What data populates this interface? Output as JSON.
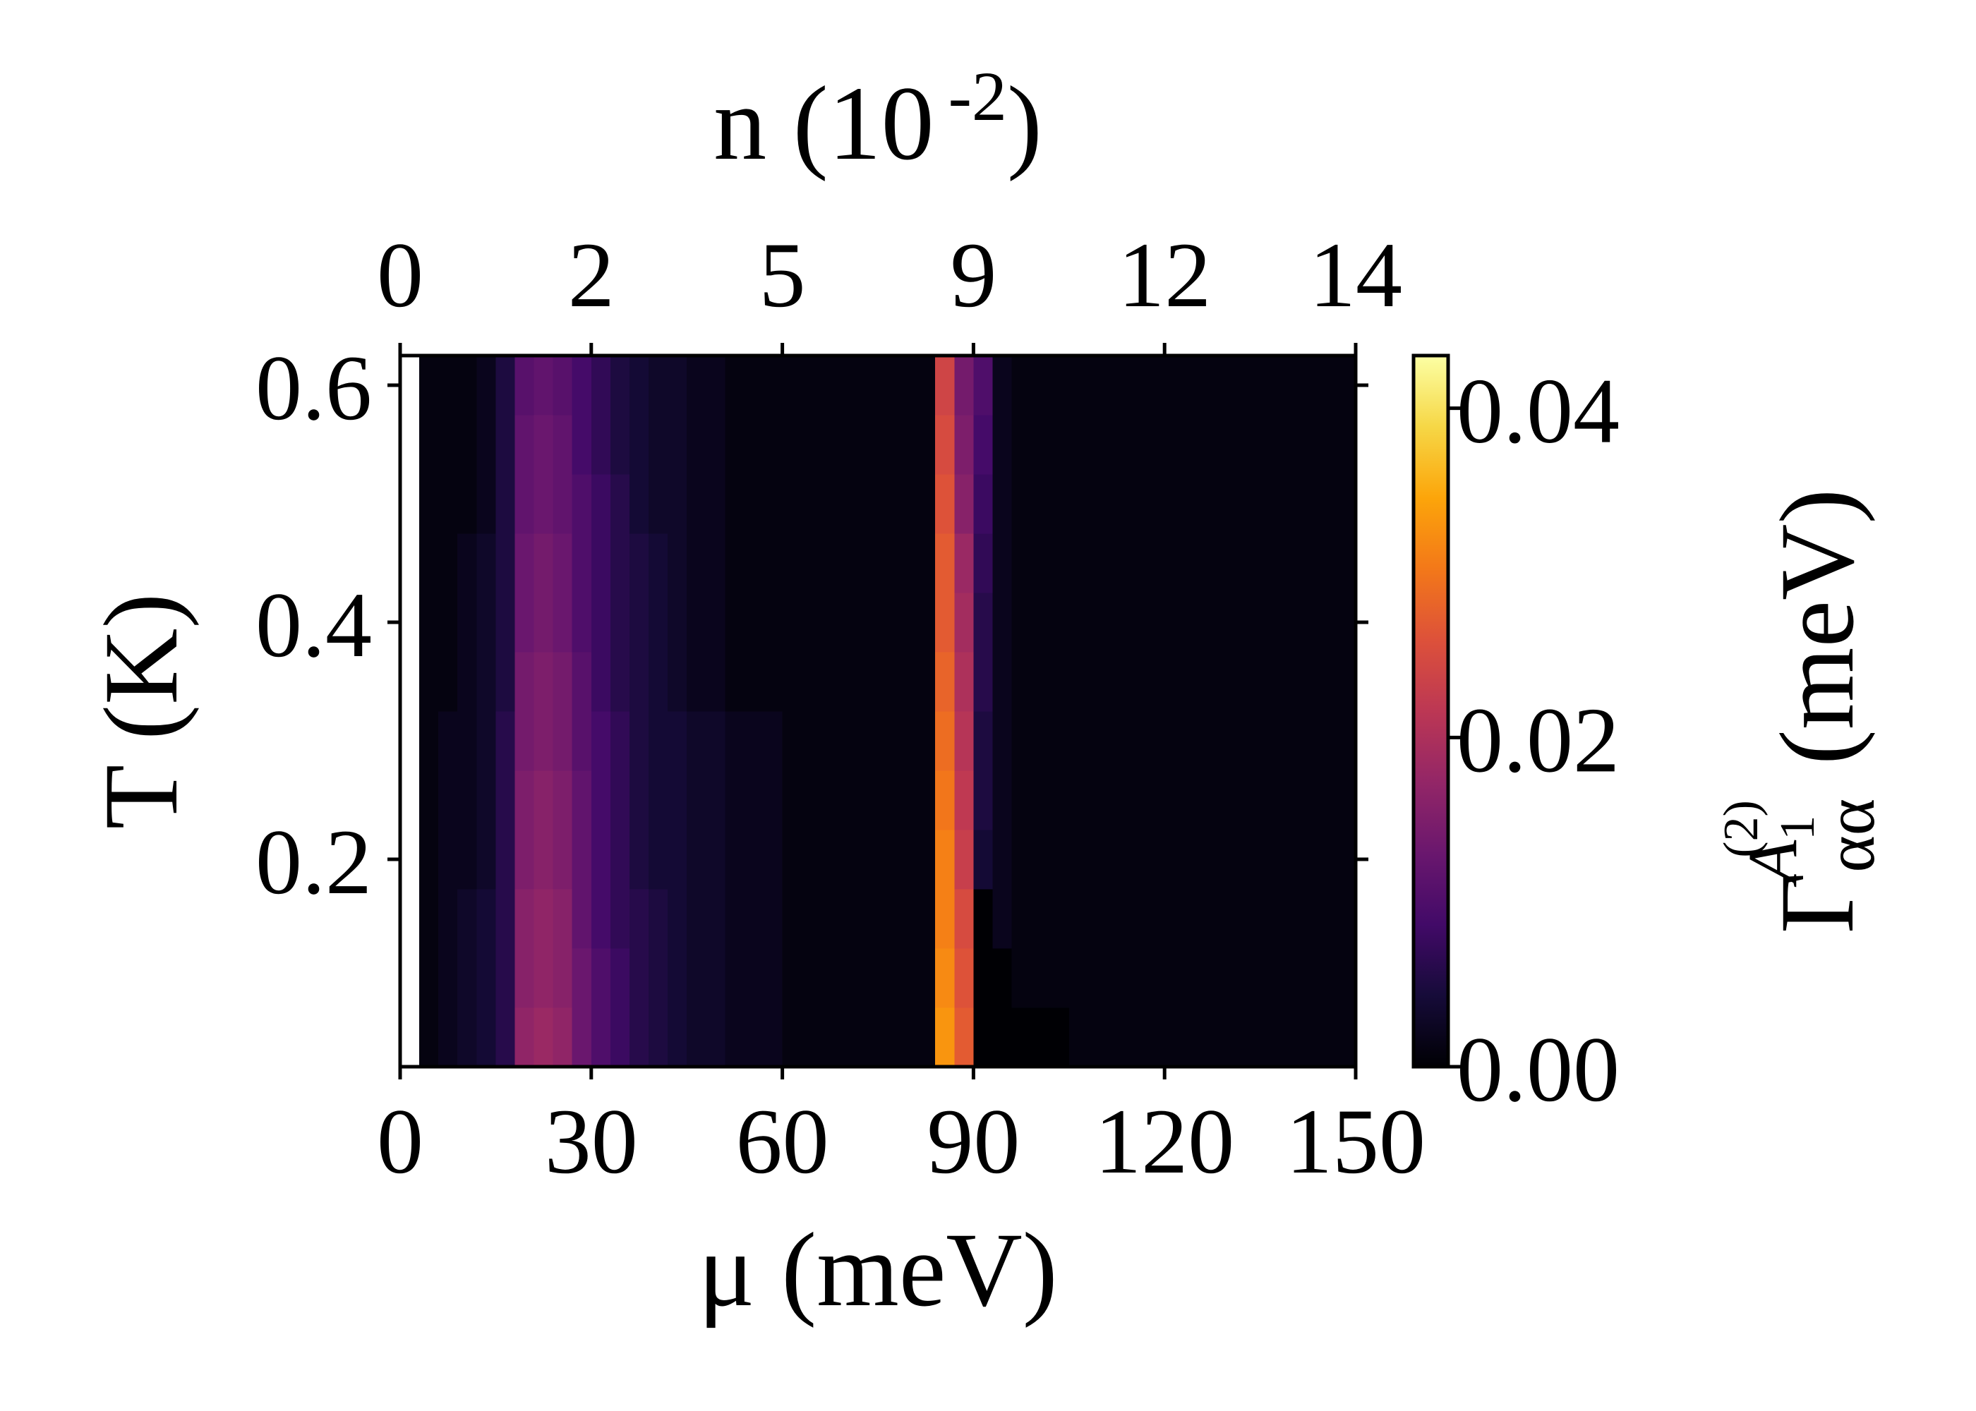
{
  "chart_data": {
    "type": "heatmap",
    "xlabel": "μ (meV)",
    "ylabel": "T (K)",
    "x2label": [
      "n (10",
      "-2",
      ")"
    ],
    "colorbar_label": [
      "Γ",
      "αα",
      "A",
      "1",
      "(2)",
      "(meV)"
    ],
    "colormap": "inferno",
    "xlim": [
      0,
      150
    ],
    "ylim": [
      0.025,
      0.625
    ],
    "zlim": [
      0,
      0.0432
    ],
    "xticks": [
      0,
      30,
      60,
      90,
      120,
      150
    ],
    "x2ticks": [
      {
        "value": 0,
        "label": "0"
      },
      {
        "value": 30,
        "label": "2"
      },
      {
        "value": 60,
        "label": "5"
      },
      {
        "value": 90,
        "label": "9"
      },
      {
        "value": 120,
        "label": "12"
      },
      {
        "value": 150,
        "label": "14"
      }
    ],
    "yticks": [
      0.2,
      0.4,
      0.6
    ],
    "zticks": [
      {
        "value": 0,
        "label": "0.00"
      },
      {
        "value": 0.02,
        "label": "0.02"
      },
      {
        "value": 0.04,
        "label": "0.04"
      }
    ],
    "x": [
      1.5,
      4.5,
      7.5,
      10.5,
      13.5,
      16.5,
      19.5,
      22.5,
      25.5,
      28.5,
      31.5,
      34.5,
      37.5,
      40.5,
      43.5,
      46.5,
      49.5,
      52.5,
      55.5,
      58.5,
      61.5,
      64.5,
      67.5,
      70.5,
      73.5,
      76.5,
      79.5,
      82.5,
      85.5,
      88.5,
      91.5,
      94.5,
      97.5,
      100.5,
      103.5,
      106.5,
      109.5,
      112.5,
      115.5,
      118.5,
      121.5,
      124.5,
      127.5,
      130.5,
      133.5,
      136.5,
      139.5,
      142.5,
      145.5,
      148.5
    ],
    "y": [
      0.05,
      0.1,
      0.15,
      0.2,
      0.25,
      0.3,
      0.35,
      0.4,
      0.45,
      0.5,
      0.55,
      0.6
    ],
    "z": [
      [
        null,
        0.001,
        0.002,
        0.003,
        0.004,
        0.006,
        0.017,
        0.018,
        0.017,
        0.013,
        0.01,
        0.008,
        0.006,
        0.005,
        0.004,
        0.003,
        0.003,
        0.002,
        0.002,
        0.002,
        0.001,
        0.001,
        0.001,
        0.001,
        0.001,
        0.001,
        0.001,
        0.001,
        0.033,
        0.027,
        0,
        0,
        0,
        0,
        0,
        0.001,
        0.001,
        0.001,
        0.001,
        0.001,
        0.001,
        0.001,
        0.001,
        0.001,
        0.001,
        0.001,
        0.001,
        0.001,
        0.001,
        0.001
      ],
      [
        null,
        0.001,
        0.002,
        0.003,
        0.004,
        0.006,
        0.016,
        0.017,
        0.016,
        0.013,
        0.01,
        0.008,
        0.006,
        0.005,
        0.004,
        0.003,
        0.003,
        0.002,
        0.002,
        0.002,
        0.001,
        0.001,
        0.001,
        0.001,
        0.001,
        0.001,
        0.001,
        0.001,
        0.032,
        0.026,
        0,
        0,
        0.001,
        0.001,
        0.001,
        0.001,
        0.001,
        0.001,
        0.001,
        0.001,
        0.001,
        0.001,
        0.001,
        0.001,
        0.001,
        0.001,
        0.001,
        0.001,
        0.001,
        0.001
      ],
      [
        null,
        0.001,
        0.002,
        0.003,
        0.004,
        0.006,
        0.016,
        0.017,
        0.016,
        0.012,
        0.009,
        0.007,
        0.006,
        0.005,
        0.004,
        0.003,
        0.003,
        0.002,
        0.002,
        0.002,
        0.001,
        0.001,
        0.001,
        0.001,
        0.001,
        0.001,
        0.001,
        0.001,
        0.031,
        0.025,
        0,
        0.002,
        0.001,
        0.001,
        0.001,
        0.001,
        0.001,
        0.001,
        0.001,
        0.001,
        0.001,
        0.001,
        0.001,
        0.001,
        0.001,
        0.001,
        0.001,
        0.001,
        0.001,
        0.001
      ],
      [
        null,
        0.001,
        0.002,
        0.002,
        0.003,
        0.006,
        0.015,
        0.016,
        0.015,
        0.012,
        0.009,
        0.007,
        0.005,
        0.004,
        0.004,
        0.003,
        0.003,
        0.002,
        0.002,
        0.002,
        0.001,
        0.001,
        0.001,
        0.001,
        0.001,
        0.001,
        0.001,
        0.001,
        0.031,
        0.023,
        0.004,
        0.002,
        0.001,
        0.001,
        0.001,
        0.001,
        0.001,
        0.001,
        0.001,
        0.001,
        0.001,
        0.001,
        0.001,
        0.001,
        0.001,
        0.001,
        0.001,
        0.001,
        0.001,
        0.001
      ],
      [
        null,
        0.001,
        0.002,
        0.002,
        0.003,
        0.006,
        0.015,
        0.016,
        0.015,
        0.012,
        0.009,
        0.007,
        0.005,
        0.004,
        0.004,
        0.003,
        0.003,
        0.002,
        0.002,
        0.002,
        0.001,
        0.001,
        0.001,
        0.001,
        0.001,
        0.001,
        0.001,
        0.001,
        0.03,
        0.022,
        0.005,
        0.002,
        0.001,
        0.001,
        0.001,
        0.001,
        0.001,
        0.001,
        0.001,
        0.001,
        0.001,
        0.001,
        0.001,
        0.001,
        0.001,
        0.001,
        0.001,
        0.001,
        0.001,
        0.001
      ],
      [
        null,
        0.001,
        0.002,
        0.002,
        0.003,
        0.006,
        0.014,
        0.015,
        0.014,
        0.011,
        0.009,
        0.007,
        0.005,
        0.004,
        0.004,
        0.003,
        0.003,
        0.002,
        0.002,
        0.002,
        0.001,
        0.001,
        0.001,
        0.001,
        0.001,
        0.001,
        0.001,
        0.001,
        0.029,
        0.021,
        0.005,
        0.002,
        0.001,
        0.001,
        0.001,
        0.001,
        0.001,
        0.001,
        0.001,
        0.001,
        0.001,
        0.001,
        0.001,
        0.001,
        0.001,
        0.001,
        0.001,
        0.001,
        0.001,
        0.001
      ],
      [
        null,
        0.001,
        0.001,
        0.002,
        0.003,
        0.005,
        0.014,
        0.015,
        0.014,
        0.011,
        0.008,
        0.006,
        0.005,
        0.004,
        0.003,
        0.002,
        0.002,
        0.001,
        0.001,
        0.001,
        0.001,
        0.001,
        0.001,
        0.001,
        0.001,
        0.001,
        0.001,
        0.001,
        0.028,
        0.02,
        0.006,
        0.002,
        0.001,
        0.001,
        0.001,
        0.001,
        0.001,
        0.001,
        0.001,
        0.001,
        0.001,
        0.001,
        0.001,
        0.001,
        0.001,
        0.001,
        0.001,
        0.001,
        0.001,
        0.001
      ],
      [
        null,
        0.001,
        0.001,
        0.002,
        0.003,
        0.005,
        0.013,
        0.014,
        0.013,
        0.01,
        0.008,
        0.006,
        0.005,
        0.004,
        0.003,
        0.002,
        0.002,
        0.001,
        0.001,
        0.001,
        0.001,
        0.001,
        0.001,
        0.001,
        0.001,
        0.001,
        0.001,
        0.001,
        0.027,
        0.019,
        0.006,
        0.002,
        0.001,
        0.001,
        0.001,
        0.001,
        0.001,
        0.001,
        0.001,
        0.001,
        0.001,
        0.001,
        0.001,
        0.001,
        0.001,
        0.001,
        0.001,
        0.001,
        0.001,
        0.001
      ],
      [
        null,
        0.001,
        0.001,
        0.002,
        0.003,
        0.005,
        0.013,
        0.014,
        0.013,
        0.01,
        0.008,
        0.006,
        0.005,
        0.004,
        0.003,
        0.002,
        0.002,
        0.001,
        0.001,
        0.001,
        0.001,
        0.001,
        0.001,
        0.001,
        0.001,
        0.001,
        0.001,
        0.001,
        0.027,
        0.018,
        0.007,
        0.002,
        0.001,
        0.001,
        0.001,
        0.001,
        0.001,
        0.001,
        0.001,
        0.001,
        0.001,
        0.001,
        0.001,
        0.001,
        0.001,
        0.001,
        0.001,
        0.001,
        0.001,
        0.001
      ],
      [
        null,
        0.001,
        0.001,
        0.001,
        0.002,
        0.005,
        0.012,
        0.013,
        0.012,
        0.01,
        0.008,
        0.006,
        0.004,
        0.003,
        0.003,
        0.002,
        0.002,
        0.001,
        0.001,
        0.001,
        0.001,
        0.001,
        0.001,
        0.001,
        0.001,
        0.001,
        0.001,
        0.001,
        0.026,
        0.016,
        0.008,
        0.002,
        0.001,
        0.001,
        0.001,
        0.001,
        0.001,
        0.001,
        0.001,
        0.001,
        0.001,
        0.001,
        0.001,
        0.001,
        0.001,
        0.001,
        0.001,
        0.001,
        0.001,
        0.001
      ],
      [
        null,
        0.001,
        0.001,
        0.001,
        0.002,
        0.005,
        0.012,
        0.013,
        0.012,
        0.009,
        0.007,
        0.005,
        0.004,
        0.003,
        0.003,
        0.002,
        0.002,
        0.001,
        0.001,
        0.001,
        0.001,
        0.001,
        0.001,
        0.001,
        0.001,
        0.001,
        0.001,
        0.001,
        0.025,
        0.015,
        0.009,
        0.002,
        0.001,
        0.001,
        0.001,
        0.001,
        0.001,
        0.001,
        0.001,
        0.001,
        0.001,
        0.001,
        0.001,
        0.001,
        0.001,
        0.001,
        0.001,
        0.001,
        0.001,
        0.001
      ],
      [
        null,
        0.001,
        0.001,
        0.001,
        0.002,
        0.005,
        0.011,
        0.012,
        0.011,
        0.009,
        0.007,
        0.005,
        0.004,
        0.003,
        0.003,
        0.002,
        0.002,
        0.001,
        0.001,
        0.001,
        0.001,
        0.001,
        0.001,
        0.001,
        0.001,
        0.001,
        0.001,
        0.001,
        0.024,
        0.014,
        0.01,
        0.002,
        0.001,
        0.001,
        0.001,
        0.001,
        0.001,
        0.001,
        0.001,
        0.001,
        0.001,
        0.001,
        0.001,
        0.001,
        0.001,
        0.001,
        0.001,
        0.001,
        0.001,
        0.001
      ]
    ]
  }
}
